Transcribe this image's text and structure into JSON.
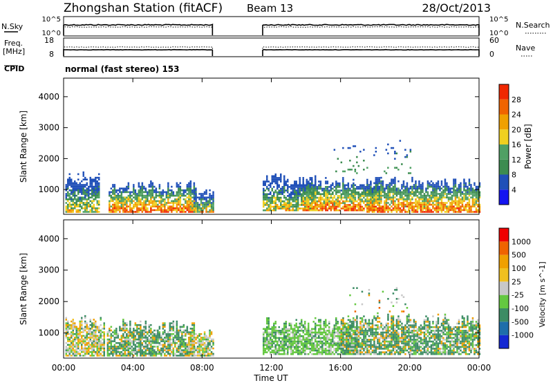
{
  "header": {
    "title": "Zhongshan Station (fitACF)",
    "beam": "Beam 13",
    "date": "28/Oct/2013"
  },
  "top_panels": {
    "nsky_label": "N.Sky",
    "nsky_ticks": [
      "10^5",
      "10^0"
    ],
    "nsearch_label": "N.Search",
    "nsearch_ticks": [
      "10^5",
      "10^0"
    ],
    "freq_label_1": "Freq.",
    "freq_label_2": "[MHz]",
    "freq_ticks": [
      "18",
      "8"
    ],
    "nave_label": "Nave",
    "nave_ticks": [
      "60",
      "0"
    ],
    "cpid_label": "CPID",
    "cpid_text": "normal (fast stereo) 153"
  },
  "colors": {
    "power_scale": [
      "#1414f0",
      "#2050b8",
      "#3c8c50",
      "#50a064",
      "#f0d020",
      "#f0a000",
      "#f06400",
      "#f02800"
    ],
    "velocity_scale": [
      "#f00000",
      "#f06400",
      "#f0a000",
      "#f0c020",
      "#c8c8c8",
      "#64c840",
      "#3c8c64",
      "#1e6eaa",
      "#1428d2"
    ]
  },
  "chart_data": [
    {
      "type": "heatmap",
      "name": "power",
      "ylabel": "Slant Range [km]",
      "xlabel": "",
      "yticks": [
        "1000",
        "2000",
        "3000",
        "4000"
      ],
      "ylim": [
        200,
        4600
      ],
      "xlim_hours": [
        0,
        24
      ],
      "colorbar_label": "Power [dB]",
      "colorbar_ticks": [
        "4",
        "8",
        "12",
        "16",
        "20",
        "24",
        "28"
      ],
      "colorbar_range": [
        0,
        32
      ],
      "blobs": [
        {
          "t0": 0.1,
          "t1": 2.0,
          "r0": 250,
          "r1": 1550,
          "level": "mixed"
        },
        {
          "t0": 2.6,
          "t1": 7.6,
          "r0": 250,
          "r1": 1250,
          "level": "high"
        },
        {
          "t0": 7.5,
          "t1": 8.6,
          "r0": 250,
          "r1": 1000,
          "level": "mixed"
        },
        {
          "t0": 11.5,
          "t1": 14.5,
          "r0": 300,
          "r1": 1500,
          "level": "mixed"
        },
        {
          "t0": 13.8,
          "t1": 18.2,
          "r0": 300,
          "r1": 1400,
          "level": "high"
        },
        {
          "t0": 17.5,
          "t1": 24.0,
          "r0": 250,
          "r1": 1400,
          "level": "high"
        },
        {
          "t0": 15.5,
          "t1": 20.0,
          "r0": 1500,
          "r1": 2600,
          "level": "sparse"
        }
      ]
    },
    {
      "type": "heatmap",
      "name": "velocity",
      "ylabel": "Slant Range [km]",
      "xlabel": "Time UT",
      "yticks": [
        "1000",
        "2000",
        "3000",
        "4000"
      ],
      "xticks": [
        "00:00",
        "04:00",
        "08:00",
        "12:00",
        "16:00",
        "20:00",
        "00:00"
      ],
      "xtick_hours": [
        0,
        4,
        8,
        12,
        16,
        20,
        24
      ],
      "ylim": [
        200,
        4600
      ],
      "xlim_hours": [
        0,
        24
      ],
      "colorbar_label": "Velocity [m s^-1]",
      "colorbar_ticks": [
        "1000",
        "500",
        "100",
        "25",
        "-25",
        "-100",
        "-500",
        "-1000"
      ],
      "blobs": [
        {
          "t0": 0.1,
          "t1": 2.3,
          "r0": 250,
          "r1": 1600,
          "level": "mixed"
        },
        {
          "t0": 2.5,
          "t1": 7.5,
          "r0": 250,
          "r1": 1400,
          "level": "green"
        },
        {
          "t0": 7.2,
          "t1": 8.6,
          "r0": 250,
          "r1": 1100,
          "level": "mixed"
        },
        {
          "t0": 11.5,
          "t1": 17.0,
          "r0": 300,
          "r1": 1500,
          "level": "lightgreen"
        },
        {
          "t0": 16.0,
          "t1": 24.0,
          "r0": 300,
          "r1": 1600,
          "level": "green"
        },
        {
          "t0": 16.5,
          "t1": 20.0,
          "r0": 1600,
          "r1": 2600,
          "level": "sparse"
        }
      ]
    }
  ]
}
